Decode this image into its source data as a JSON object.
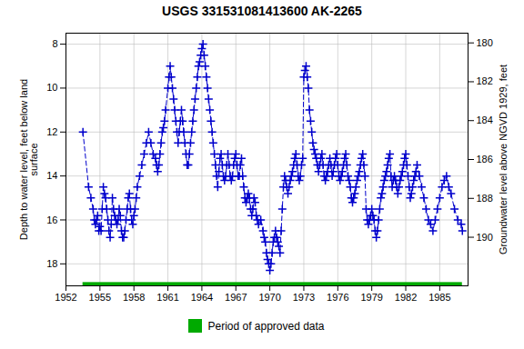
{
  "chart_data": {
    "type": "line",
    "title": "USGS 331531081413600 AK-2265",
    "ylabel": "Depth to water level, feet below land\nsurface",
    "y2label": "Groundwater level above NGVD 1929, feet",
    "x": [
      1953.5,
      1954.0,
      1954.2,
      1954.4,
      1954.5,
      1954.6,
      1954.7,
      1954.8,
      1954.9,
      1955.0,
      1955.1,
      1955.2,
      1955.3,
      1955.4,
      1955.5,
      1955.6,
      1955.7,
      1955.8,
      1955.9,
      1956.0,
      1956.1,
      1956.2,
      1956.3,
      1956.4,
      1956.5,
      1956.6,
      1956.7,
      1956.8,
      1956.9,
      1957.0,
      1957.1,
      1957.2,
      1957.3,
      1957.4,
      1957.5,
      1957.6,
      1957.7,
      1957.8,
      1957.9,
      1958.0,
      1958.1,
      1958.2,
      1958.3,
      1958.5,
      1958.7,
      1958.9,
      1959.1,
      1959.3,
      1959.5,
      1959.7,
      1959.9,
      1960.0,
      1960.1,
      1960.2,
      1960.3,
      1960.4,
      1960.5,
      1960.6,
      1960.7,
      1960.8,
      1961.0,
      1961.1,
      1961.2,
      1961.3,
      1961.4,
      1961.5,
      1961.6,
      1961.7,
      1961.8,
      1961.9,
      1962.0,
      1962.1,
      1962.2,
      1962.3,
      1962.4,
      1962.5,
      1962.6,
      1962.7,
      1962.8,
      1962.9,
      1963.0,
      1963.1,
      1963.2,
      1963.3,
      1963.4,
      1963.5,
      1963.6,
      1963.7,
      1963.8,
      1963.9,
      1964.0,
      1964.1,
      1964.2,
      1964.3,
      1964.4,
      1964.5,
      1964.6,
      1964.7,
      1964.8,
      1964.9,
      1965.0,
      1965.1,
      1965.2,
      1965.3,
      1965.4,
      1965.5,
      1965.6,
      1965.7,
      1965.8,
      1965.9,
      1966.0,
      1966.1,
      1966.2,
      1966.3,
      1966.4,
      1966.5,
      1966.6,
      1966.7,
      1966.8,
      1966.9,
      1967.0,
      1967.1,
      1967.2,
      1967.3,
      1967.4,
      1967.5,
      1967.6,
      1967.7,
      1967.8,
      1967.9,
      1968.0,
      1968.1,
      1968.2,
      1968.3,
      1968.4,
      1968.5,
      1968.6,
      1968.7,
      1968.8,
      1968.9,
      1969.0,
      1969.2,
      1969.4,
      1969.5,
      1969.6,
      1969.7,
      1969.8,
      1969.9,
      1970.0,
      1970.1,
      1970.2,
      1970.3,
      1970.4,
      1970.5,
      1970.6,
      1970.7,
      1970.8,
      1970.9,
      1971.0,
      1971.1,
      1971.2,
      1971.3,
      1971.4,
      1971.5,
      1971.6,
      1971.7,
      1971.8,
      1971.9,
      1972.0,
      1972.1,
      1972.2,
      1972.3,
      1972.4,
      1972.5,
      1972.6,
      1972.7,
      1972.8,
      1972.9,
      1973.0,
      1973.1,
      1973.2,
      1973.3,
      1973.4,
      1973.5,
      1973.6,
      1973.7,
      1973.8,
      1973.9,
      1974.0,
      1974.1,
      1974.2,
      1974.3,
      1974.4,
      1974.5,
      1974.6,
      1974.7,
      1974.8,
      1974.9,
      1975.0,
      1975.1,
      1975.2,
      1975.3,
      1975.4,
      1975.5,
      1975.6,
      1975.7,
      1975.8,
      1975.9,
      1976.0,
      1976.1,
      1976.2,
      1976.3,
      1976.4,
      1976.5,
      1976.6,
      1976.7,
      1976.8,
      1976.9,
      1977.0,
      1977.1,
      1977.2,
      1977.3,
      1977.4,
      1977.5,
      1977.6,
      1977.7,
      1977.8,
      1977.9,
      1978.0,
      1978.1,
      1978.2,
      1978.3,
      1978.4,
      1978.5,
      1978.6,
      1978.7,
      1978.8,
      1978.9,
      1979.0,
      1979.1,
      1979.2,
      1979.3,
      1979.4,
      1979.5,
      1979.6,
      1979.7,
      1979.8,
      1979.9,
      1980.0,
      1980.1,
      1980.2,
      1980.3,
      1980.4,
      1980.5,
      1980.6,
      1980.7,
      1980.8,
      1980.9,
      1981.0,
      1981.1,
      1981.2,
      1981.3,
      1981.4,
      1981.5,
      1981.6,
      1981.7,
      1981.8,
      1981.9,
      1982.0,
      1982.1,
      1982.2,
      1982.3,
      1982.4,
      1982.5,
      1982.6,
      1982.7,
      1982.8,
      1982.9,
      1983.0,
      1983.2,
      1983.4,
      1983.6,
      1983.8,
      1984.0,
      1984.2,
      1984.4,
      1984.6,
      1984.8,
      1985.0,
      1985.2,
      1985.4,
      1985.6,
      1985.8,
      1986.0,
      1986.3,
      1986.6,
      1986.9,
      1987.0
    ],
    "values": [
      12.0,
      14.5,
      15.0,
      15.5,
      16.0,
      16.2,
      16.0,
      15.8,
      16.5,
      16.3,
      16.5,
      15.5,
      14.5,
      14.8,
      15.0,
      15.5,
      16.0,
      16.5,
      16.8,
      16.2,
      15.0,
      15.5,
      15.8,
      16.0,
      16.2,
      16.0,
      15.5,
      15.8,
      16.5,
      16.8,
      16.8,
      16.5,
      16.0,
      15.5,
      15.0,
      14.8,
      15.5,
      16.0,
      16.2,
      15.8,
      15.5,
      15.0,
      14.5,
      14.0,
      13.5,
      13.0,
      12.5,
      12.0,
      12.5,
      13.0,
      13.2,
      13.5,
      13.8,
      13.5,
      13.0,
      12.5,
      12.0,
      11.8,
      11.5,
      11.0,
      10.0,
      9.5,
      9.0,
      9.5,
      10.0,
      10.5,
      11.0,
      11.5,
      12.0,
      12.5,
      12.0,
      11.5,
      11.0,
      11.5,
      12.0,
      12.5,
      13.0,
      13.5,
      13.5,
      13.0,
      12.5,
      12.0,
      11.5,
      11.0,
      10.5,
      10.0,
      9.5,
      9.0,
      8.8,
      8.5,
      8.2,
      8.0,
      8.5,
      9.0,
      9.5,
      10.0,
      10.5,
      11.0,
      11.5,
      12.0,
      12.5,
      13.0,
      13.5,
      14.0,
      14.5,
      13.8,
      13.2,
      13.0,
      13.5,
      14.0,
      14.2,
      14.0,
      13.5,
      13.0,
      13.5,
      14.0,
      14.2,
      14.0,
      13.5,
      13.2,
      13.0,
      13.5,
      14.0,
      14.0,
      13.5,
      13.2,
      14.0,
      14.5,
      15.0,
      15.2,
      15.0,
      14.8,
      15.0,
      15.5,
      15.8,
      15.5,
      15.0,
      15.2,
      15.8,
      16.0,
      16.2,
      16.0,
      16.5,
      16.8,
      17.0,
      17.5,
      17.8,
      18.0,
      18.3,
      18.0,
      17.5,
      17.0,
      16.8,
      16.5,
      16.8,
      17.0,
      17.2,
      17.5,
      16.5,
      15.5,
      14.5,
      14.0,
      14.2,
      14.5,
      14.8,
      14.5,
      14.2,
      14.0,
      13.8,
      13.5,
      13.2,
      13.0,
      13.5,
      14.0,
      14.2,
      14.0,
      13.5,
      13.2,
      9.5,
      9.2,
      9.0,
      9.5,
      10.0,
      11.0,
      11.5,
      12.0,
      12.5,
      12.8,
      13.0,
      13.2,
      13.5,
      13.8,
      13.5,
      13.2,
      13.0,
      13.5,
      14.0,
      14.2,
      14.0,
      13.8,
      13.5,
      13.2,
      13.5,
      14.0,
      13.8,
      13.5,
      13.2,
      13.0,
      13.5,
      14.0,
      14.2,
      14.0,
      13.8,
      13.5,
      13.2,
      13.0,
      13.5,
      14.0,
      14.2,
      14.5,
      15.0,
      15.2,
      15.0,
      14.8,
      14.5,
      14.2,
      14.0,
      13.8,
      13.5,
      13.2,
      13.0,
      13.5,
      14.0,
      15.5,
      16.0,
      16.2,
      16.0,
      15.8,
      15.5,
      15.8,
      16.0,
      16.5,
      16.8,
      16.5,
      16.0,
      15.5,
      15.0,
      14.8,
      14.5,
      14.2,
      14.0,
      13.8,
      13.5,
      13.2,
      13.0,
      14.0,
      14.5,
      14.2,
      14.0,
      14.2,
      14.5,
      14.8,
      14.5,
      14.2,
      14.0,
      13.8,
      13.5,
      13.2,
      13.0,
      13.5,
      14.0,
      14.5,
      15.0,
      14.8,
      14.5,
      14.2,
      14.0,
      13.8,
      13.5,
      14.0,
      14.5,
      15.0,
      15.5,
      16.0,
      16.2,
      16.5,
      16.0,
      15.5,
      15.0,
      14.5,
      14.2,
      14.0,
      14.5,
      14.8,
      15.5,
      16.0,
      16.2,
      16.5
    ],
    "color": "#0000CC",
    "marker": "plus",
    "line_style": "dashed",
    "xlim": [
      1952,
      1987.5
    ],
    "xticks": [
      1952,
      1955,
      1958,
      1961,
      1964,
      1967,
      1970,
      1973,
      1976,
      1979,
      1982,
      1985
    ],
    "ylim": [
      19.0,
      7.5
    ],
    "yticks": [
      8,
      10,
      12,
      14,
      16,
      18
    ],
    "y2lim": [
      192.5,
      179.5
    ],
    "y2ticks": [
      180,
      182,
      184,
      186,
      188,
      190
    ],
    "approved_period": {
      "name": "Period of approved data",
      "color": "#00AA00",
      "x": [
        1953.5,
        1987.0
      ],
      "y": [
        18.85,
        19.0
      ]
    },
    "grid": true,
    "legend": "bottom"
  }
}
